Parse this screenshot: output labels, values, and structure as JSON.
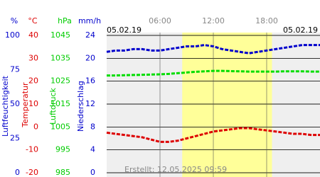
{
  "chart_data": {
    "type": "line",
    "start_label": "05.02.19",
    "end_label": "05.02.19",
    "created": "Erstellt: 12.05.2025 09:59",
    "xlim": [
      0,
      24
    ],
    "xticks": [
      {
        "value": 6,
        "label": "06:00"
      },
      {
        "value": 12,
        "label": "12:00"
      },
      {
        "value": 18,
        "label": "18:00"
      }
    ],
    "daylight": [
      8.5,
      18.6
    ],
    "grid": true,
    "axes": [
      {
        "label": "Luftfeuchtigkeit",
        "unit": "%",
        "color": "#0000cc",
        "ylim": [
          0,
          100
        ],
        "yticks": [
          0,
          25,
          50,
          75,
          100
        ]
      },
      {
        "label": "Temperatur",
        "unit": "°C",
        "color": "#dd0000",
        "ylim": [
          -20,
          40
        ],
        "yticks": [
          -20,
          -10,
          0,
          10,
          20,
          30,
          40
        ]
      },
      {
        "label": "Luftdruck",
        "unit": "hPa",
        "color": "#00cc00",
        "ylim": [
          985,
          1045
        ],
        "yticks": [
          985,
          995,
          1005,
          1015,
          1025,
          1035,
          1045
        ]
      },
      {
        "label": "Niederschlag",
        "unit": "mm/h",
        "color": "#0000cc",
        "ylim": [
          0,
          24
        ],
        "yticks": [
          0,
          4,
          8,
          12,
          16,
          20,
          24
        ]
      }
    ],
    "x": [
      0,
      1,
      2,
      3,
      4,
      5,
      6,
      7,
      8,
      9,
      10,
      11,
      12,
      13,
      14,
      15,
      16,
      17,
      18,
      19,
      20,
      21,
      22,
      23,
      24
    ],
    "series": [
      {
        "name": "Luftfeuchtigkeit",
        "axis": 0,
        "color": "#0000cc",
        "values": [
          88,
          89,
          89,
          90,
          90,
          89,
          89,
          90,
          91,
          92,
          92,
          93,
          92,
          90,
          89,
          88,
          87,
          88,
          89,
          90,
          91,
          92,
          93,
          93,
          93
        ]
      },
      {
        "name": "Temperatur",
        "axis": 1,
        "color": "#dd0000",
        "values": [
          -2.5,
          -3,
          -3.5,
          -4,
          -4.5,
          -5.5,
          -6.5,
          -6.5,
          -6,
          -5,
          -4,
          -3,
          -2,
          -1.5,
          -1,
          -0.5,
          -0.5,
          -1,
          -1.5,
          -2,
          -2.5,
          -3,
          -3,
          -3.5,
          -3.5
        ]
      },
      {
        "name": "Luftdruck",
        "axis": 2,
        "color": "#00dd00",
        "values": [
          1027.5,
          1027.5,
          1027.6,
          1027.7,
          1027.8,
          1027.9,
          1028,
          1028.2,
          1028.5,
          1028.8,
          1029.1,
          1029.3,
          1029.5,
          1029.5,
          1029.4,
          1029.3,
          1029.2,
          1029.2,
          1029.2,
          1029.2,
          1029.3,
          1029.3,
          1029.3,
          1029.2,
          1029.2
        ]
      }
    ]
  }
}
